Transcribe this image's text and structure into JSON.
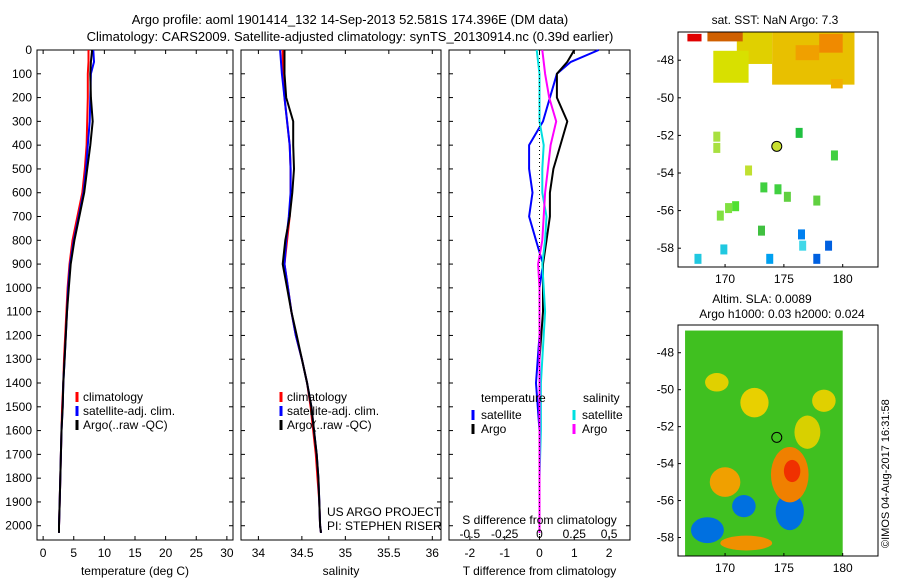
{
  "header": {
    "line1": "Argo profile: aoml 1901414_132 14-Sep-2013 52.581S 174.396E (DM data)",
    "line2": "Climatology: CARS2009. Satellite-adjusted climatology: synTS_20130914.nc (0.39d earlier)"
  },
  "side_label": "©IMOS 04-Aug-2017 16:31:58",
  "colors": {
    "climatology": "#ff0000",
    "satellite": "#0000ff",
    "argo": "#000000",
    "sal_sat": "#00e0e0",
    "sal_argo": "#ff00ff"
  },
  "chart_data": [
    {
      "type": "line",
      "name": "temperature",
      "xlabel": "temperature (deg C)",
      "xlim": [
        -1,
        31
      ],
      "xticks": [
        "0",
        "5",
        "10",
        "15",
        "20",
        "25",
        "30"
      ],
      "xtick_values": [
        0,
        5,
        10,
        15,
        20,
        25,
        30
      ],
      "ylim": [
        2060,
        0
      ],
      "yticks": [
        0,
        100,
        200,
        300,
        400,
        500,
        600,
        700,
        800,
        900,
        1000,
        1100,
        1200,
        1300,
        1400,
        1500,
        1600,
        1700,
        1800,
        1900,
        2000
      ],
      "legend": [
        "climatology",
        "satellite-adj. clim.",
        "Argo(..raw -QC)"
      ],
      "series": [
        {
          "name": "climatology",
          "color": "#ff0000",
          "points": [
            [
              7.4,
              0
            ],
            [
              7.4,
              50
            ],
            [
              7.3,
              100
            ],
            [
              7.3,
              200
            ],
            [
              7.2,
              300
            ],
            [
              7.1,
              400
            ],
            [
              6.8,
              500
            ],
            [
              6.4,
              600
            ],
            [
              5.6,
              700
            ],
            [
              4.8,
              800
            ],
            [
              4.3,
              900
            ],
            [
              4.0,
              1000
            ],
            [
              3.8,
              1100
            ],
            [
              3.6,
              1200
            ],
            [
              3.4,
              1300
            ],
            [
              3.3,
              1400
            ],
            [
              3.1,
              1500
            ],
            [
              3.0,
              1600
            ],
            [
              2.9,
              1700
            ],
            [
              2.8,
              1800
            ],
            [
              2.7,
              1900
            ],
            [
              2.6,
              2000
            ],
            [
              2.6,
              2030
            ]
          ]
        },
        {
          "name": "satellite-adj. clim.",
          "color": "#0000ff",
          "points": [
            [
              8.2,
              0
            ],
            [
              8.3,
              50
            ],
            [
              7.8,
              100
            ],
            [
              7.7,
              200
            ],
            [
              7.6,
              300
            ],
            [
              7.3,
              400
            ],
            [
              7.0,
              500
            ],
            [
              6.6,
              600
            ],
            [
              5.8,
              700
            ],
            [
              5.0,
              800
            ],
            [
              4.4,
              900
            ],
            [
              4.1,
              1000
            ],
            [
              3.9,
              1100
            ],
            [
              3.7,
              1200
            ],
            [
              3.5,
              1300
            ],
            [
              3.3,
              1400
            ],
            [
              3.2,
              1500
            ],
            [
              3.0,
              1600
            ],
            [
              2.9,
              1700
            ],
            [
              2.8,
              1800
            ],
            [
              2.7,
              1900
            ],
            [
              2.6,
              2000
            ],
            [
              2.6,
              2030
            ]
          ]
        },
        {
          "name": "Argo(..raw -QC)",
          "color": "#000000",
          "points": [
            [
              8.0,
              0
            ],
            [
              7.8,
              50
            ],
            [
              7.7,
              100
            ],
            [
              7.8,
              200
            ],
            [
              8.1,
              300
            ],
            [
              7.7,
              400
            ],
            [
              7.2,
              500
            ],
            [
              6.7,
              600
            ],
            [
              5.9,
              700
            ],
            [
              5.1,
              800
            ],
            [
              4.5,
              900
            ],
            [
              4.2,
              1000
            ],
            [
              3.9,
              1100
            ],
            [
              3.7,
              1200
            ],
            [
              3.5,
              1300
            ],
            [
              3.3,
              1400
            ],
            [
              3.2,
              1500
            ],
            [
              3.0,
              1600
            ],
            [
              2.9,
              1700
            ],
            [
              2.8,
              1800
            ],
            [
              2.7,
              1900
            ],
            [
              2.6,
              2000
            ],
            [
              2.6,
              2030
            ]
          ]
        }
      ]
    },
    {
      "type": "line",
      "name": "salinity",
      "xlabel": "salinity",
      "xlim": [
        33.8,
        36.1
      ],
      "xticks": [
        "34",
        "34.5",
        "35",
        "35.5",
        "36"
      ],
      "xtick_values": [
        34,
        34.5,
        35,
        35.5,
        36
      ],
      "ylim": [
        2060,
        0
      ],
      "legend": [
        "climatology",
        "satellite-adj. clim.",
        "Argo(..raw -QC)"
      ],
      "annotation": [
        "US ARGO PROJECT",
        "PI: STEPHEN RISER"
      ],
      "series": [
        {
          "name": "climatology",
          "color": "#ff0000",
          "points": [
            [
              34.28,
              0
            ],
            [
              34.28,
              100
            ],
            [
              34.3,
              200
            ],
            [
              34.33,
              300
            ],
            [
              34.36,
              400
            ],
            [
              34.37,
              500
            ],
            [
              34.37,
              600
            ],
            [
              34.36,
              700
            ],
            [
              34.33,
              800
            ],
            [
              34.3,
              900
            ],
            [
              34.34,
              1000
            ],
            [
              34.38,
              1100
            ],
            [
              34.43,
              1200
            ],
            [
              34.5,
              1300
            ],
            [
              34.56,
              1400
            ],
            [
              34.6,
              1500
            ],
            [
              34.63,
              1600
            ],
            [
              34.66,
              1700
            ],
            [
              34.68,
              1800
            ],
            [
              34.7,
              1900
            ],
            [
              34.71,
              2000
            ],
            [
              34.72,
              2030
            ]
          ]
        },
        {
          "name": "satellite-adj. clim.",
          "color": "#0000ff",
          "points": [
            [
              34.25,
              0
            ],
            [
              34.27,
              100
            ],
            [
              34.3,
              200
            ],
            [
              34.33,
              300
            ],
            [
              34.36,
              400
            ],
            [
              34.37,
              500
            ],
            [
              34.37,
              600
            ],
            [
              34.35,
              700
            ],
            [
              34.32,
              800
            ],
            [
              34.3,
              900
            ],
            [
              34.34,
              1000
            ],
            [
              34.38,
              1100
            ],
            [
              34.43,
              1200
            ],
            [
              34.5,
              1300
            ],
            [
              34.56,
              1400
            ],
            [
              34.61,
              1500
            ],
            [
              34.64,
              1600
            ],
            [
              34.67,
              1700
            ],
            [
              34.69,
              1800
            ],
            [
              34.7,
              1900
            ],
            [
              34.71,
              2000
            ],
            [
              34.72,
              2030
            ]
          ]
        },
        {
          "name": "Argo(..raw -QC)",
          "color": "#000000",
          "points": [
            [
              34.3,
              0
            ],
            [
              34.3,
              100
            ],
            [
              34.32,
              200
            ],
            [
              34.4,
              300
            ],
            [
              34.4,
              400
            ],
            [
              34.41,
              500
            ],
            [
              34.39,
              600
            ],
            [
              34.36,
              700
            ],
            [
              34.31,
              800
            ],
            [
              34.28,
              900
            ],
            [
              34.33,
              1000
            ],
            [
              34.38,
              1100
            ],
            [
              34.44,
              1200
            ],
            [
              34.5,
              1300
            ],
            [
              34.56,
              1400
            ],
            [
              34.61,
              1500
            ],
            [
              34.64,
              1600
            ],
            [
              34.67,
              1700
            ],
            [
              34.69,
              1800
            ],
            [
              34.7,
              1900
            ],
            [
              34.71,
              2000
            ],
            [
              34.72,
              2030
            ]
          ]
        }
      ]
    },
    {
      "type": "line",
      "name": "difference",
      "xlabel": "T difference from climatology",
      "xlabel2": "S difference from climatology",
      "xlim": [
        -2.6,
        2.6
      ],
      "xticks": [
        "-2",
        "-1",
        "0",
        "1",
        "2"
      ],
      "xtick_values": [
        -2,
        -1,
        0,
        1,
        2
      ],
      "xticks2": [
        "-0.5",
        "-0.25",
        "0",
        "0.25",
        "0.5"
      ],
      "xtick2_values": [
        -0.5,
        -0.25,
        0,
        0.25,
        0.5
      ],
      "ylim": [
        2060,
        0
      ],
      "legend_titles": [
        "temperature",
        "salinity"
      ],
      "legend_left": [
        "satellite",
        "Argo"
      ],
      "legend_right": [
        "satellite",
        "Argo"
      ],
      "series": [
        {
          "name": "T satellite",
          "color": "#0000ff",
          "points": [
            [
              1.7,
              0
            ],
            [
              0.9,
              50
            ],
            [
              0.5,
              100
            ],
            [
              0.3,
              200
            ],
            [
              0.1,
              300
            ],
            [
              -0.3,
              400
            ],
            [
              -0.3,
              500
            ],
            [
              -0.2,
              600
            ],
            [
              -0.3,
              700
            ],
            [
              -0.1,
              800
            ],
            [
              0.1,
              900
            ],
            [
              0.0,
              1000
            ],
            [
              0.0,
              1200
            ],
            [
              -0.1,
              1400
            ],
            [
              0.0,
              1600
            ],
            [
              0.0,
              1800
            ],
            [
              0.0,
              2000
            ],
            [
              0.0,
              2030
            ]
          ]
        },
        {
          "name": "T Argo",
          "color": "#000000",
          "points": [
            [
              1.0,
              0
            ],
            [
              0.8,
              50
            ],
            [
              0.5,
              100
            ],
            [
              0.5,
              200
            ],
            [
              0.8,
              300
            ],
            [
              0.6,
              400
            ],
            [
              0.4,
              500
            ],
            [
              0.3,
              600
            ],
            [
              0.3,
              700
            ],
            [
              0.2,
              800
            ],
            [
              0.1,
              900
            ],
            [
              0.1,
              1100
            ],
            [
              0.0,
              1300
            ],
            [
              0.0,
              1500
            ],
            [
              0.0,
              1700
            ],
            [
              0.0,
              1900
            ],
            [
              0.0,
              2030
            ]
          ]
        },
        {
          "name": "S satellite",
          "color": "#00e0e0",
          "points": [
            [
              -0.02,
              0
            ],
            [
              0.0,
              100
            ],
            [
              0.0,
              200
            ],
            [
              0.0,
              300
            ],
            [
              0.03,
              400
            ],
            [
              0.02,
              500
            ],
            [
              0.02,
              600
            ],
            [
              0.05,
              700
            ],
            [
              0.04,
              800
            ],
            [
              0.02,
              900
            ],
            [
              0.03,
              1000
            ],
            [
              0.04,
              1100
            ],
            [
              0.03,
              1200
            ],
            [
              0.02,
              1300
            ],
            [
              0.01,
              1400
            ],
            [
              0.01,
              1600
            ],
            [
              0.0,
              1800
            ],
            [
              0.0,
              2030
            ]
          ]
        },
        {
          "name": "S Argo",
          "color": "#ff00ff",
          "points": [
            [
              0.02,
              0
            ],
            [
              0.04,
              100
            ],
            [
              0.07,
              200
            ],
            [
              0.12,
              300
            ],
            [
              0.08,
              400
            ],
            [
              0.06,
              500
            ],
            [
              0.04,
              600
            ],
            [
              0.03,
              700
            ],
            [
              0.02,
              800
            ],
            [
              -0.01,
              900
            ],
            [
              0.0,
              1000
            ],
            [
              0.0,
              1200
            ],
            [
              0.0,
              1600
            ],
            [
              0.0,
              2030
            ]
          ]
        }
      ]
    },
    {
      "type": "heatmap",
      "name": "sst_map",
      "title": "sat. SST: NaN Argo: 7.3",
      "xlim": [
        166,
        183
      ],
      "ylim": [
        -59,
        -46.5
      ],
      "xticks": [
        "170",
        "175",
        "180"
      ],
      "xtick_values": [
        170,
        175,
        180
      ],
      "yticks": [
        "-48",
        "-50",
        "-52",
        "-54",
        "-56",
        "-58"
      ],
      "ytick_values": [
        -48,
        -50,
        -52,
        -54,
        -56,
        -58
      ],
      "marker": [
        174.396,
        -52.581
      ]
    },
    {
      "type": "heatmap",
      "name": "sla_map",
      "title": "Altim. SLA: 0.0089",
      "subtitle": "Argo h1000: 0.03 h2000: 0.024",
      "xlim": [
        166,
        183
      ],
      "ylim": [
        -59,
        -46.5
      ],
      "xticks": [
        "170",
        "175",
        "180"
      ],
      "xtick_values": [
        170,
        175,
        180
      ],
      "yticks": [
        "-48",
        "-50",
        "-52",
        "-54",
        "-56",
        "-58"
      ],
      "ytick_values": [
        -48,
        -50,
        -52,
        -54,
        -56,
        -58
      ],
      "marker": [
        174.396,
        -52.581
      ]
    }
  ]
}
